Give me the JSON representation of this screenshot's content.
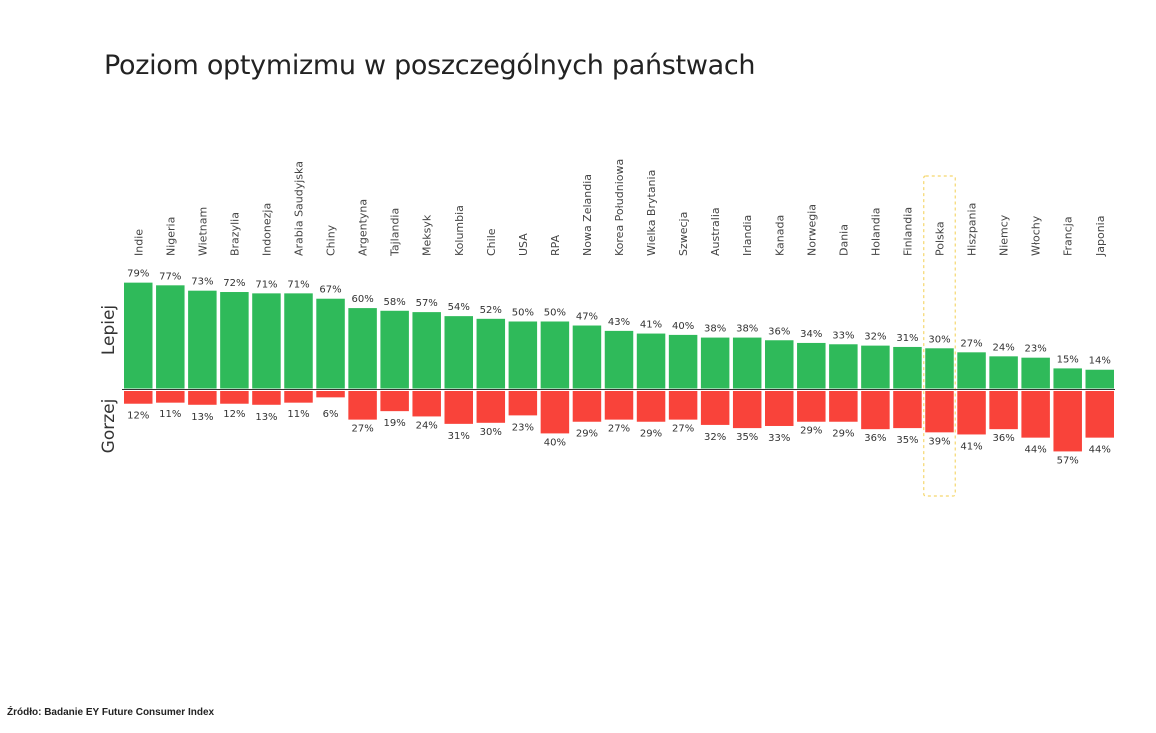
{
  "title": "Poziom optymizmu w poszczególnych państwach",
  "source": "Źródło: Badanie EY Future Consumer Index",
  "colors": {
    "better": "#2fba5a",
    "worse": "#f9433a",
    "highlight": "#f5d76e"
  },
  "chart_data": {
    "type": "bar",
    "title": "Poziom optymizmu w poszczególnych państwach",
    "categories": [
      "Indie",
      "Nigeria",
      "Wietnam",
      "Brazylia",
      "Indonezja",
      "Arabia Saudyjska",
      "Chiny",
      "Argentyna",
      "Tajlandia",
      "Meksyk",
      "Kolumbia",
      "Chile",
      "USA",
      "RPA",
      "Nowa Zelandia",
      "Korea Południowa",
      "Wielka Brytania",
      "Szwecja",
      "Australia",
      "Irlandia",
      "Kanada",
      "Norwegia",
      "Dania",
      "Holandia",
      "Finlandia",
      "Polska",
      "Hiszpania",
      "Niemcy",
      "Włochy",
      "Francja",
      "Japonia"
    ],
    "series": [
      {
        "name": "Lepiej",
        "values": [
          79,
          77,
          73,
          72,
          71,
          71,
          67,
          60,
          58,
          57,
          54,
          52,
          50,
          50,
          47,
          43,
          41,
          40,
          38,
          38,
          36,
          34,
          33,
          32,
          31,
          30,
          27,
          24,
          23,
          15,
          14
        ]
      },
      {
        "name": "Gorzej",
        "values": [
          12,
          11,
          13,
          12,
          13,
          11,
          6,
          27,
          19,
          24,
          31,
          30,
          23,
          40,
          29,
          27,
          29,
          27,
          32,
          35,
          33,
          29,
          29,
          36,
          35,
          39,
          41,
          36,
          44,
          57,
          44
        ]
      }
    ],
    "value_suffix": "%",
    "highlight_category": "Polska",
    "legend": "none"
  }
}
